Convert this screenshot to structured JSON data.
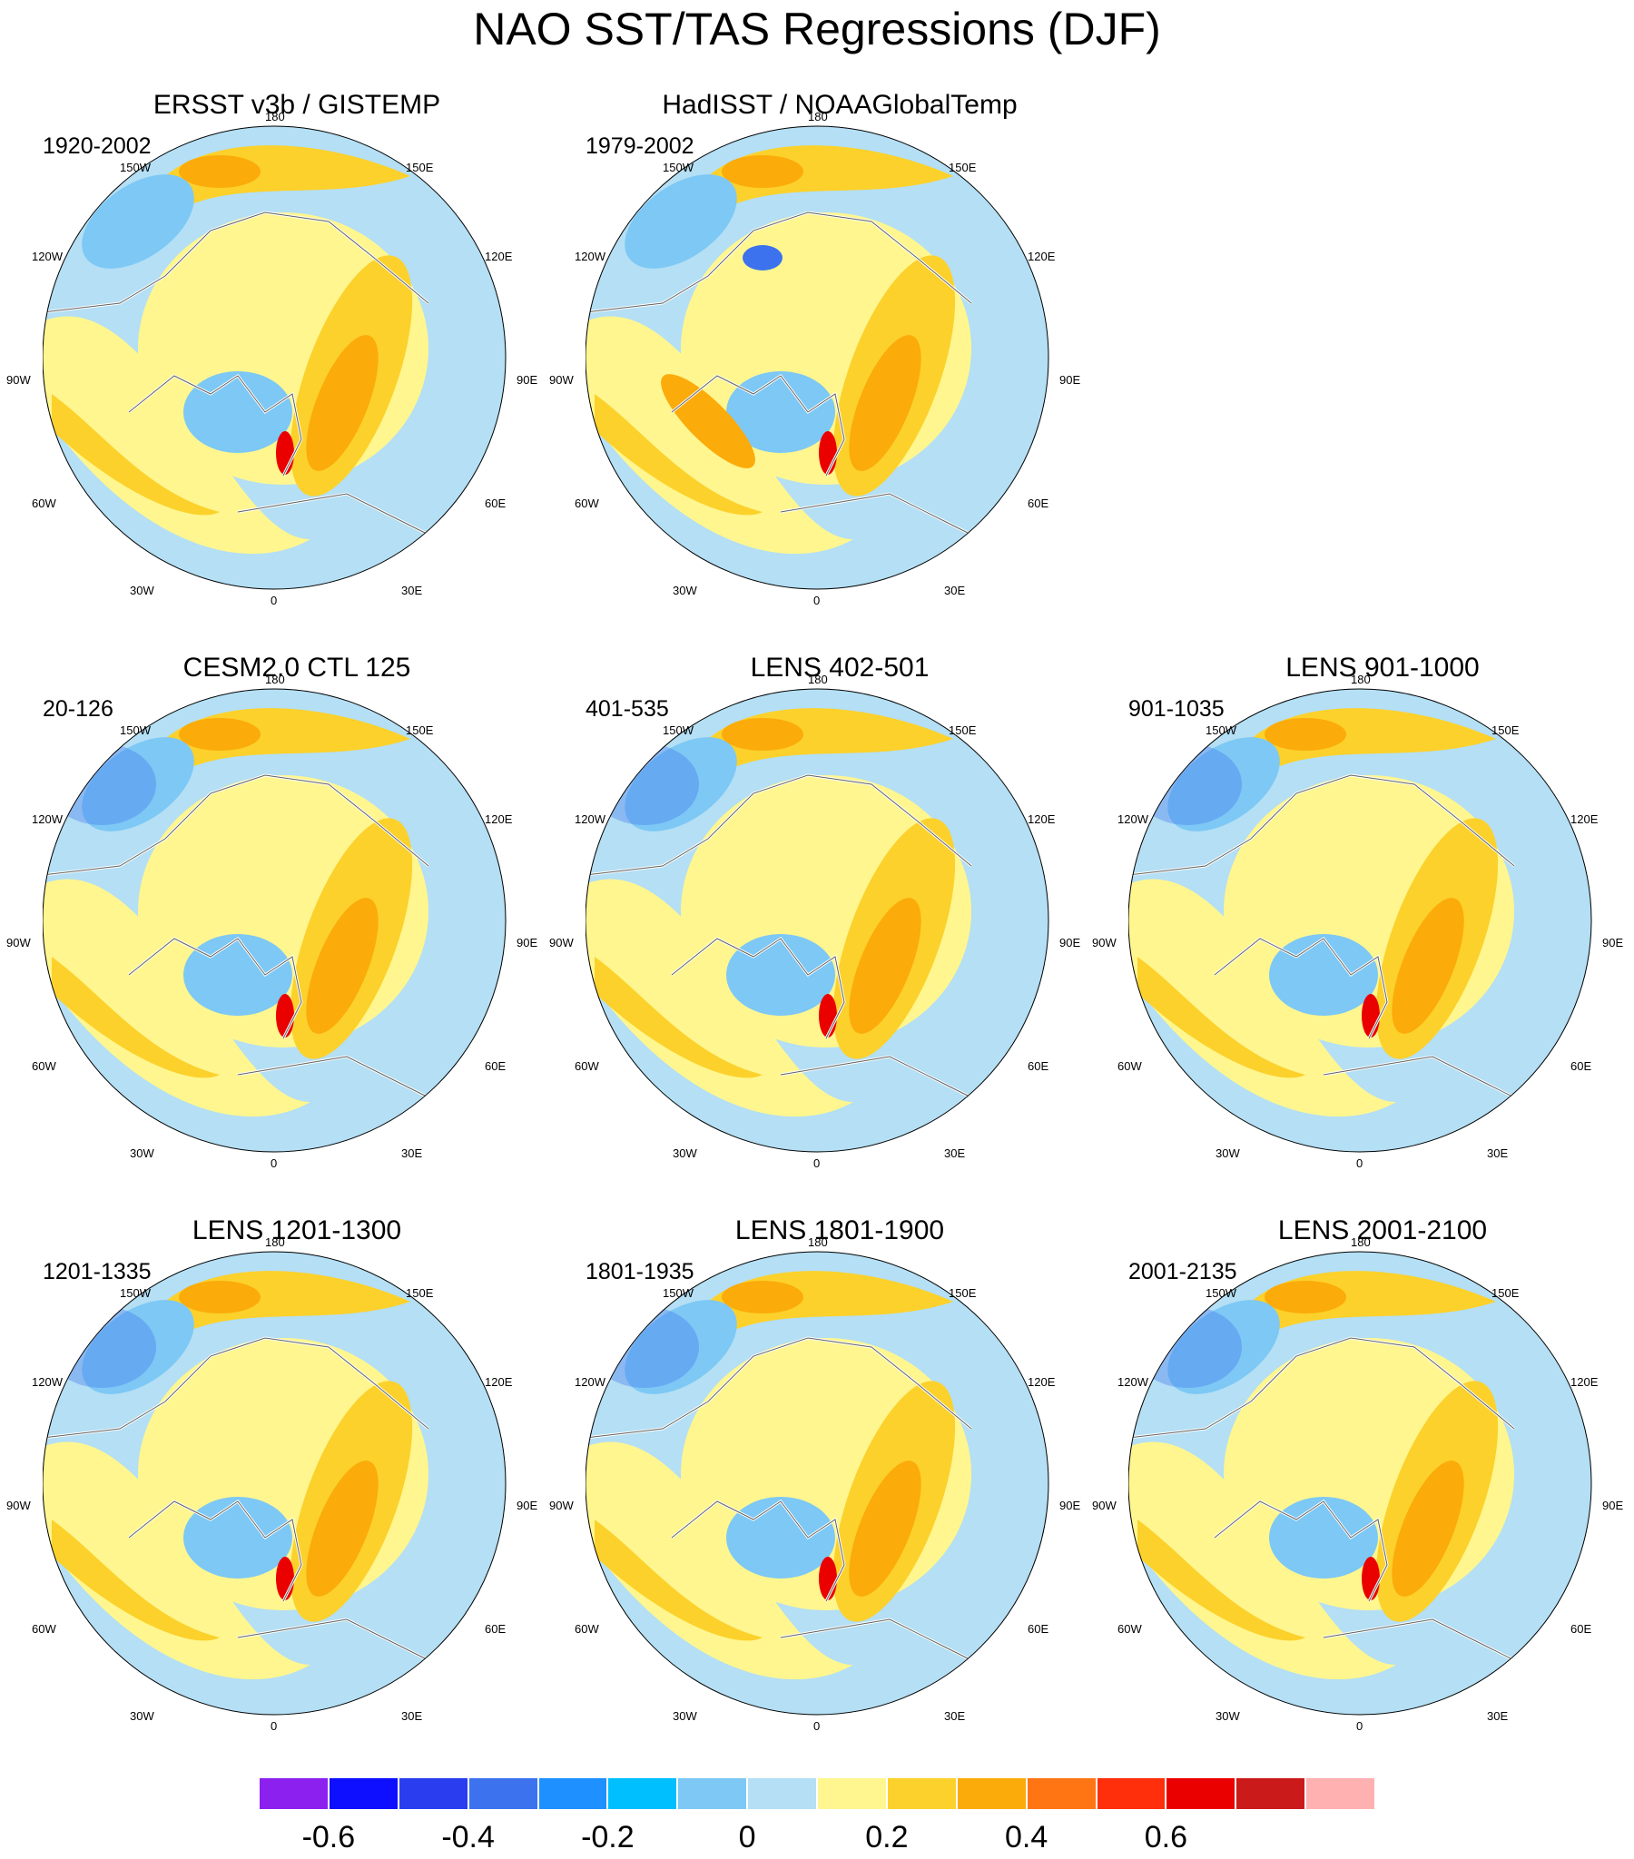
{
  "figure": {
    "title": "NAO SST/TAS Regressions (DJF)"
  },
  "longitude_labels": {
    "north": "180",
    "nnw": "150W",
    "nne": "150E",
    "wnw": "120W",
    "ene": "120E",
    "west": "90W",
    "east": "90E",
    "wsw": "60W",
    "ese": "60E",
    "ssw": "30W",
    "sse": "30E",
    "south": "0"
  },
  "panels": [
    {
      "title": "ERSST v3b / GISTEMP",
      "period": "1920-2002",
      "pattern": "obs1"
    },
    {
      "title": "HadISST / NOAAGlobalTemp",
      "period": "1979-2002",
      "pattern": "obs2"
    },
    {
      "title": "CESM2.0 CTL 125",
      "period": "20-126",
      "pattern": "model"
    },
    {
      "title": "LENS 402-501",
      "period": "401-535",
      "pattern": "model"
    },
    {
      "title": "LENS 901-1000",
      "period": "901-1035",
      "pattern": "model"
    },
    {
      "title": "LENS 1201-1300",
      "period": "1201-1335",
      "pattern": "model"
    },
    {
      "title": "LENS 1801-1900",
      "period": "1801-1935",
      "pattern": "model"
    },
    {
      "title": "LENS 2001-2100",
      "period": "2001-2135",
      "pattern": "model"
    }
  ],
  "colorbar": {
    "colors": [
      "#8c21ef",
      "#0f0fff",
      "#2a3ef0",
      "#3c72ee",
      "#1e90ff",
      "#00bfff",
      "#7dc8f5",
      "#b4dff4",
      "#fff68f",
      "#fcd12b",
      "#fbab0a",
      "#ff7514",
      "#ff2e0b",
      "#eb0000",
      "#cb1a1a",
      "#ffb0b0"
    ],
    "tick_labels": [
      "-0.6",
      "-0.4",
      "-0.2",
      "0",
      "0.2",
      "0.4",
      "0.6"
    ]
  },
  "legend_colors": {
    "land_fill": "#b4dff4",
    "neutral_positive": "#fff68f",
    "weak_positive": "#fcd12b",
    "moderate_positive": "#fbab0a",
    "weak_negative": "#7dc8f5",
    "moderate_negative": "#3c72ee",
    "strong_positive": "#eb0000"
  }
}
